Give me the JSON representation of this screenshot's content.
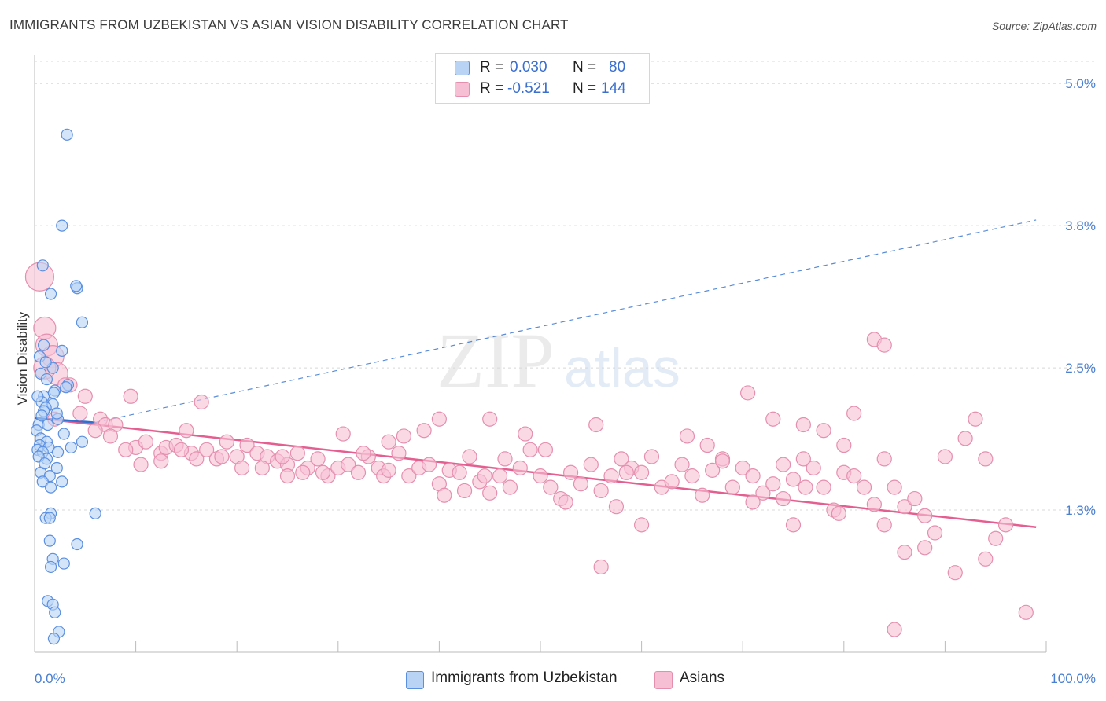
{
  "header": {
    "title": "IMMIGRANTS FROM UZBEKISTAN VS ASIAN VISION DISABILITY CORRELATION CHART",
    "source": "Source: ZipAtlas.com"
  },
  "watermark": {
    "zip": "ZIP",
    "atlas": "atlas"
  },
  "stats": {
    "row1": {
      "r_label": "R =",
      "r_value": "0.030",
      "n_label": "N =",
      "n_value": "80"
    },
    "row2": {
      "r_label": "R =",
      "r_value": "-0.521",
      "n_label": "N =",
      "n_value": "144"
    }
  },
  "legend": {
    "item1": "Immigrants from Uzbekistan",
    "item2": "Asians"
  },
  "colors": {
    "blue_fill": "#b9d3f5",
    "blue_stroke": "#5b8fe0",
    "blue_line": "#3070d0",
    "pink_fill": "#f7bfd3",
    "pink_stroke": "#e58fae",
    "pink_line": "#e45f8f",
    "tick_label": "#4a7fd1",
    "grid": "#d8d8d8"
  },
  "chart_data": {
    "type": "scatter",
    "title": "IMMIGRANTS FROM UZBEKISTAN VS ASIAN VISION DISABILITY CORRELATION CHART",
    "xlabel": "",
    "ylabel": "Vision Disability",
    "xlim": [
      0,
      100
    ],
    "ylim": [
      0.0,
      5.25
    ],
    "x_tick_labels": [
      {
        "value": 0,
        "label": "0.0%"
      },
      {
        "value": 100,
        "label": "100.0%"
      }
    ],
    "y_ticks": [
      {
        "value": 1.25,
        "label": "1.3%"
      },
      {
        "value": 2.5,
        "label": "2.5%"
      },
      {
        "value": 3.75,
        "label": "3.8%"
      },
      {
        "value": 5.0,
        "label": "5.0%"
      }
    ],
    "grid": true,
    "legend_position": "bottom-center",
    "series": [
      {
        "name": "Immigrants from Uzbekistan",
        "color": "#5b8fe0",
        "trend": {
          "x": [
            0,
            6
          ],
          "y": [
            2.06,
            2.02
          ],
          "style": "solid"
        },
        "trend_extended": {
          "x": [
            6,
            99
          ],
          "y": [
            2.02,
            3.8
          ],
          "style": "dashed"
        },
        "points": [
          [
            3.2,
            4.55
          ],
          [
            2.7,
            3.75
          ],
          [
            0.8,
            3.4
          ],
          [
            4.2,
            3.2
          ],
          [
            4.1,
            3.22
          ],
          [
            1.6,
            3.15
          ],
          [
            4.7,
            2.9
          ],
          [
            0.9,
            2.7
          ],
          [
            2.7,
            2.65
          ],
          [
            1.8,
            2.5
          ],
          [
            0.6,
            2.45
          ],
          [
            1.2,
            2.4
          ],
          [
            3.3,
            2.35
          ],
          [
            2.0,
            2.3
          ],
          [
            0.9,
            2.25
          ],
          [
            0.7,
            2.2
          ],
          [
            1.8,
            2.18
          ],
          [
            1.1,
            2.15
          ],
          [
            0.9,
            2.12
          ],
          [
            2.3,
            2.05
          ],
          [
            0.4,
            2.0
          ],
          [
            1.3,
            2.0
          ],
          [
            0.2,
            1.95
          ],
          [
            2.9,
            1.92
          ],
          [
            0.6,
            1.88
          ],
          [
            1.2,
            1.85
          ],
          [
            4.7,
            1.85
          ],
          [
            0.5,
            1.82
          ],
          [
            1.4,
            1.8
          ],
          [
            3.6,
            1.8
          ],
          [
            0.3,
            1.78
          ],
          [
            0.8,
            1.76
          ],
          [
            2.3,
            1.76
          ],
          [
            1.2,
            1.7
          ],
          [
            2.2,
            1.62
          ],
          [
            0.6,
            1.58
          ],
          [
            1.5,
            1.55
          ],
          [
            2.7,
            1.5
          ],
          [
            0.8,
            1.5
          ],
          [
            1.6,
            1.45
          ],
          [
            6.0,
            1.22
          ],
          [
            1.6,
            1.22
          ],
          [
            1.1,
            1.18
          ],
          [
            1.5,
            1.18
          ],
          [
            1.5,
            0.98
          ],
          [
            4.2,
            0.95
          ],
          [
            1.8,
            0.82
          ],
          [
            2.9,
            0.78
          ],
          [
            1.6,
            0.75
          ],
          [
            1.3,
            0.45
          ],
          [
            1.8,
            0.42
          ],
          [
            2.0,
            0.35
          ],
          [
            2.4,
            0.18
          ],
          [
            1.9,
            0.12
          ],
          [
            0.5,
            2.6
          ],
          [
            1.1,
            2.55
          ],
          [
            0.3,
            2.25
          ],
          [
            0.7,
            2.08
          ],
          [
            1.9,
            2.28
          ],
          [
            0.4,
            1.72
          ],
          [
            1.0,
            1.66
          ],
          [
            3.1,
            2.33
          ],
          [
            2.2,
            2.1
          ]
        ]
      },
      {
        "name": "Asians",
        "color": "#e58fae",
        "trend": {
          "x": [
            0,
            99
          ],
          "y": [
            2.06,
            1.1
          ],
          "style": "solid"
        },
        "points": [
          [
            0.5,
            3.3
          ],
          [
            1.0,
            2.85
          ],
          [
            1.2,
            2.7
          ],
          [
            1.8,
            2.6
          ],
          [
            2.2,
            2.45
          ],
          [
            3.5,
            2.35
          ],
          [
            5.0,
            2.25
          ],
          [
            6.5,
            2.05
          ],
          [
            7.0,
            2.0
          ],
          [
            8.0,
            2.0
          ],
          [
            9.5,
            2.25
          ],
          [
            10.0,
            1.8
          ],
          [
            11.0,
            1.85
          ],
          [
            12.5,
            1.75
          ],
          [
            13.0,
            1.8
          ],
          [
            14.0,
            1.82
          ],
          [
            15.0,
            1.95
          ],
          [
            15.5,
            1.75
          ],
          [
            16.0,
            1.7
          ],
          [
            17.0,
            1.78
          ],
          [
            18.0,
            1.7
          ],
          [
            19.0,
            1.85
          ],
          [
            20.0,
            1.72
          ],
          [
            21.0,
            1.82
          ],
          [
            22.0,
            1.75
          ],
          [
            23.0,
            1.72
          ],
          [
            24.0,
            1.68
          ],
          [
            25.0,
            1.65
          ],
          [
            26.0,
            1.75
          ],
          [
            27.0,
            1.62
          ],
          [
            28.0,
            1.7
          ],
          [
            29.0,
            1.55
          ],
          [
            30.0,
            1.62
          ],
          [
            31.0,
            1.65
          ],
          [
            32.0,
            1.58
          ],
          [
            33.0,
            1.72
          ],
          [
            34.0,
            1.62
          ],
          [
            35.0,
            1.85
          ],
          [
            36.0,
            1.75
          ],
          [
            37.0,
            1.55
          ],
          [
            38.0,
            1.62
          ],
          [
            39.0,
            1.65
          ],
          [
            40.0,
            1.48
          ],
          [
            41.0,
            1.6
          ],
          [
            42.0,
            1.58
          ],
          [
            43.0,
            1.72
          ],
          [
            44.0,
            1.5
          ],
          [
            45.0,
            1.4
          ],
          [
            46.0,
            1.55
          ],
          [
            47.0,
            1.45
          ],
          [
            48.0,
            1.62
          ],
          [
            49.0,
            1.78
          ],
          [
            50.0,
            1.55
          ],
          [
            51.0,
            1.45
          ],
          [
            52.0,
            1.35
          ],
          [
            53.0,
            1.58
          ],
          [
            54.0,
            1.48
          ],
          [
            55.0,
            1.65
          ],
          [
            56.0,
            1.42
          ],
          [
            57.0,
            1.55
          ],
          [
            58.0,
            1.7
          ],
          [
            59.0,
            1.62
          ],
          [
            60.0,
            1.58
          ],
          [
            61.0,
            1.72
          ],
          [
            62.0,
            1.45
          ],
          [
            63.0,
            1.5
          ],
          [
            64.0,
            1.65
          ],
          [
            65.0,
            1.55
          ],
          [
            66.0,
            1.38
          ],
          [
            67.0,
            1.6
          ],
          [
            68.0,
            1.7
          ],
          [
            69.0,
            1.45
          ],
          [
            70.0,
            1.62
          ],
          [
            71.0,
            1.55
          ],
          [
            72.0,
            1.4
          ],
          [
            73.0,
            1.48
          ],
          [
            74.0,
            1.35
          ],
          [
            75.0,
            1.52
          ],
          [
            76.0,
            1.7
          ],
          [
            77.0,
            1.62
          ],
          [
            78.0,
            1.45
          ],
          [
            79.0,
            1.25
          ],
          [
            80.0,
            1.58
          ],
          [
            81.0,
            1.55
          ],
          [
            82.0,
            1.45
          ],
          [
            83.0,
            1.3
          ],
          [
            84.0,
            1.7
          ],
          [
            85.0,
            1.45
          ],
          [
            86.0,
            1.28
          ],
          [
            87.0,
            1.35
          ],
          [
            88.0,
            1.2
          ],
          [
            89.0,
            1.05
          ],
          [
            90.0,
            1.72
          ],
          [
            70.5,
            2.28
          ],
          [
            71.0,
            1.32
          ],
          [
            73.0,
            2.05
          ],
          [
            74.0,
            1.65
          ],
          [
            75.0,
            1.12
          ],
          [
            76.2,
            1.45
          ],
          [
            79.5,
            1.22
          ],
          [
            80.0,
            1.82
          ],
          [
            81.0,
            2.1
          ],
          [
            92.0,
            1.88
          ],
          [
            93.0,
            2.05
          ],
          [
            94.0,
            1.7
          ],
          [
            95.0,
            1.0
          ],
          [
            96.0,
            1.12
          ],
          [
            76.0,
            2.0
          ],
          [
            78.0,
            1.95
          ],
          [
            83.0,
            2.75
          ],
          [
            84.0,
            2.7
          ],
          [
            68.0,
            1.68
          ],
          [
            66.5,
            1.82
          ],
          [
            64.5,
            1.9
          ],
          [
            58.5,
            1.58
          ],
          [
            57.5,
            1.28
          ],
          [
            55.5,
            2.0
          ],
          [
            52.5,
            1.32
          ],
          [
            50.5,
            1.78
          ],
          [
            48.5,
            1.92
          ],
          [
            46.5,
            1.7
          ],
          [
            44.5,
            1.55
          ],
          [
            42.5,
            1.42
          ],
          [
            40.5,
            1.38
          ],
          [
            38.5,
            1.95
          ],
          [
            36.5,
            1.9
          ],
          [
            34.5,
            1.55
          ],
          [
            32.5,
            1.75
          ],
          [
            30.5,
            1.92
          ],
          [
            28.5,
            1.58
          ],
          [
            26.5,
            1.58
          ],
          [
            24.5,
            1.72
          ],
          [
            22.5,
            1.62
          ],
          [
            20.5,
            1.62
          ],
          [
            18.5,
            1.72
          ],
          [
            16.5,
            2.2
          ],
          [
            14.5,
            1.78
          ],
          [
            12.5,
            1.68
          ],
          [
            10.5,
            1.65
          ],
          [
            9.0,
            1.78
          ],
          [
            7.5,
            1.9
          ],
          [
            6.0,
            1.95
          ],
          [
            4.5,
            2.1
          ],
          [
            3.0,
            2.35
          ],
          [
            2.0,
            2.05
          ],
          [
            1.0,
            2.5
          ],
          [
            56.0,
            0.75
          ],
          [
            84.0,
            1.12
          ],
          [
            86.0,
            0.88
          ],
          [
            88.0,
            0.92
          ],
          [
            91.0,
            0.7
          ],
          [
            94.0,
            0.82
          ],
          [
            98.0,
            0.35
          ],
          [
            85.0,
            0.2
          ],
          [
            60.0,
            1.12
          ],
          [
            35.0,
            1.6
          ],
          [
            40.0,
            2.05
          ],
          [
            25.0,
            1.55
          ],
          [
            45.0,
            2.05
          ]
        ]
      }
    ]
  }
}
